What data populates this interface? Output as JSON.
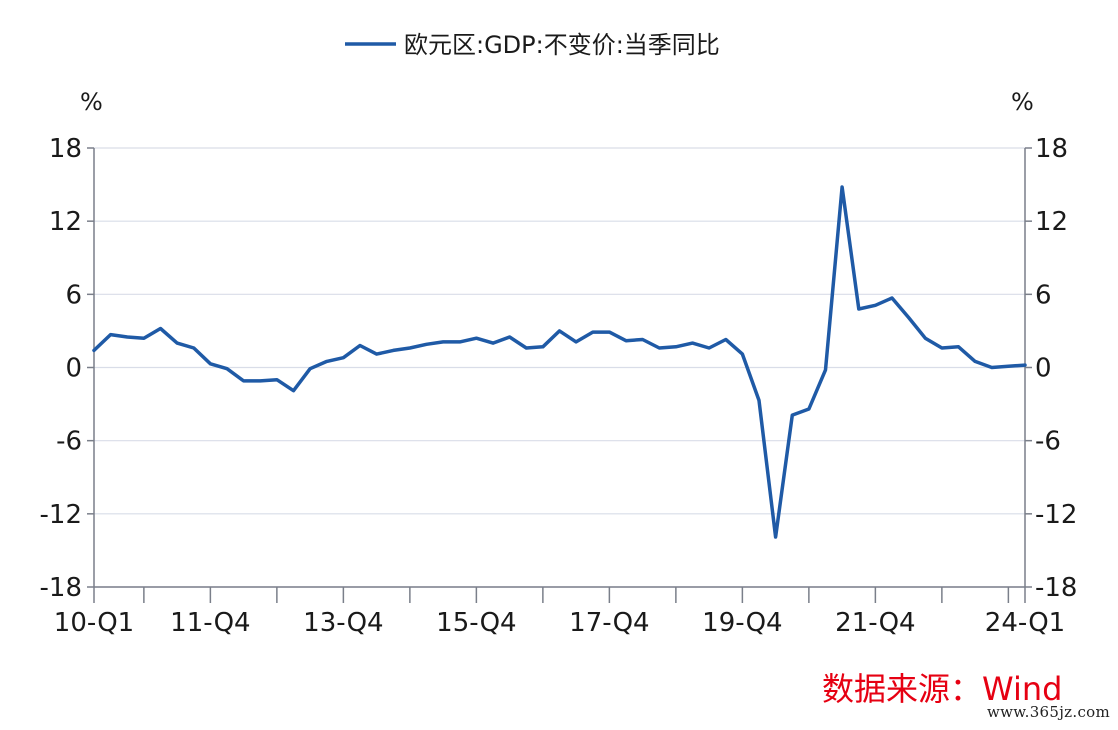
{
  "chart_data": {
    "type": "line",
    "legend": {
      "label": "欧元区:GDP:不变价:当季同比",
      "position": "top"
    },
    "unit_left": "%",
    "unit_right": "%",
    "ylim": [
      -18,
      18
    ],
    "yticks": [
      18,
      12,
      6,
      0,
      -6,
      -12,
      -18
    ],
    "ytick_labels": [
      "18",
      "12",
      "6",
      "0",
      "-6",
      "-12",
      "-18"
    ],
    "grid": true,
    "color": "#1f5aa6",
    "x_labels": [
      {
        "label": "10-Q1",
        "index": 0
      },
      {
        "label": "11-Q4",
        "index": 7
      },
      {
        "label": "13-Q4",
        "index": 15
      },
      {
        "label": "15-Q4",
        "index": 23
      },
      {
        "label": "17-Q4",
        "index": 31
      },
      {
        "label": "19-Q4",
        "index": 39
      },
      {
        "label": "21-Q4",
        "index": 47
      },
      {
        "label": "24-Q1",
        "index": 56
      }
    ],
    "x": [
      "10-Q1",
      "10-Q2",
      "10-Q3",
      "10-Q4",
      "11-Q1",
      "11-Q2",
      "11-Q3",
      "11-Q4",
      "12-Q1",
      "12-Q2",
      "12-Q3",
      "12-Q4",
      "13-Q1",
      "13-Q2",
      "13-Q3",
      "13-Q4",
      "14-Q1",
      "14-Q2",
      "14-Q3",
      "14-Q4",
      "15-Q1",
      "15-Q2",
      "15-Q3",
      "15-Q4",
      "16-Q1",
      "16-Q2",
      "16-Q3",
      "16-Q4",
      "17-Q1",
      "17-Q2",
      "17-Q3",
      "17-Q4",
      "18-Q1",
      "18-Q2",
      "18-Q3",
      "18-Q4",
      "19-Q1",
      "19-Q2",
      "19-Q3",
      "19-Q4",
      "20-Q1",
      "20-Q2",
      "20-Q3",
      "20-Q4",
      "21-Q1",
      "21-Q2",
      "21-Q3",
      "21-Q4",
      "22-Q1",
      "22-Q2",
      "22-Q3",
      "22-Q4",
      "23-Q1",
      "23-Q2",
      "23-Q3",
      "23-Q4",
      "24-Q1"
    ],
    "values": [
      1.4,
      2.7,
      2.5,
      2.4,
      3.2,
      2.0,
      1.6,
      0.3,
      -0.1,
      -1.1,
      -1.1,
      -1.0,
      -1.9,
      -0.1,
      0.5,
      0.8,
      1.8,
      1.1,
      1.4,
      1.6,
      1.9,
      2.1,
      2.1,
      2.4,
      2.0,
      2.5,
      1.6,
      1.7,
      3.0,
      2.1,
      2.9,
      2.9,
      2.2,
      2.3,
      1.6,
      1.7,
      2.0,
      1.6,
      2.3,
      1.1,
      -2.7,
      -13.9,
      -3.9,
      -3.4,
      -0.2,
      14.8,
      4.8,
      5.1,
      5.7,
      4.1,
      2.4,
      1.6,
      1.7,
      0.5,
      0.0,
      0.1,
      0.2
    ]
  },
  "source": "数据来源：Wind",
  "watermark": "www.365jz.com"
}
